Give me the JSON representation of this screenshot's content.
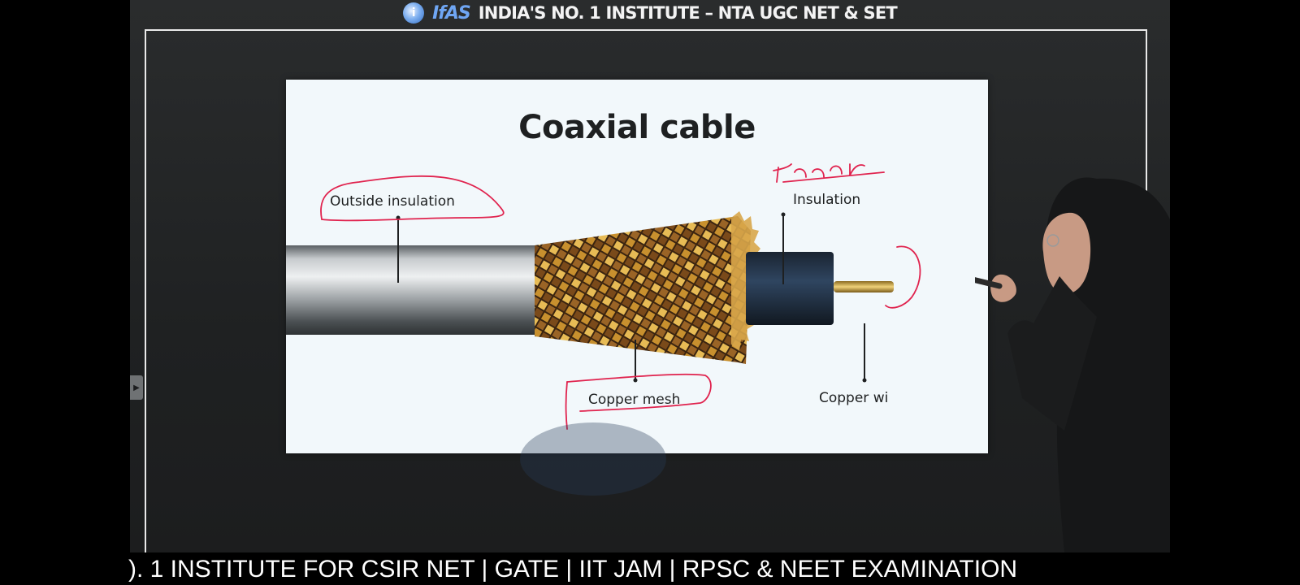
{
  "header": {
    "logo_text": "IfAS",
    "banner_text": "INDIA'S NO. 1 INSTITUTE – NTA UGC NET & SET"
  },
  "slide": {
    "title": "Coaxial cable",
    "labels": {
      "outside_insulation": "Outside insulation",
      "insulation": "Insulation",
      "copper_mesh": "Copper mesh",
      "copper_wire": "Copper wi"
    }
  },
  "annotations": {
    "handwritten_inner": "Inner"
  },
  "ticker": {
    "text": "). 1  INSTITUTE FOR CSIR NET | GATE | IIT JAM | RPSC & NEET EXAMINATION"
  },
  "colors": {
    "annotation_pen": "#e0234e",
    "logo_blue": "#6fa6f3",
    "slide_bg": "#f2f8fb"
  }
}
